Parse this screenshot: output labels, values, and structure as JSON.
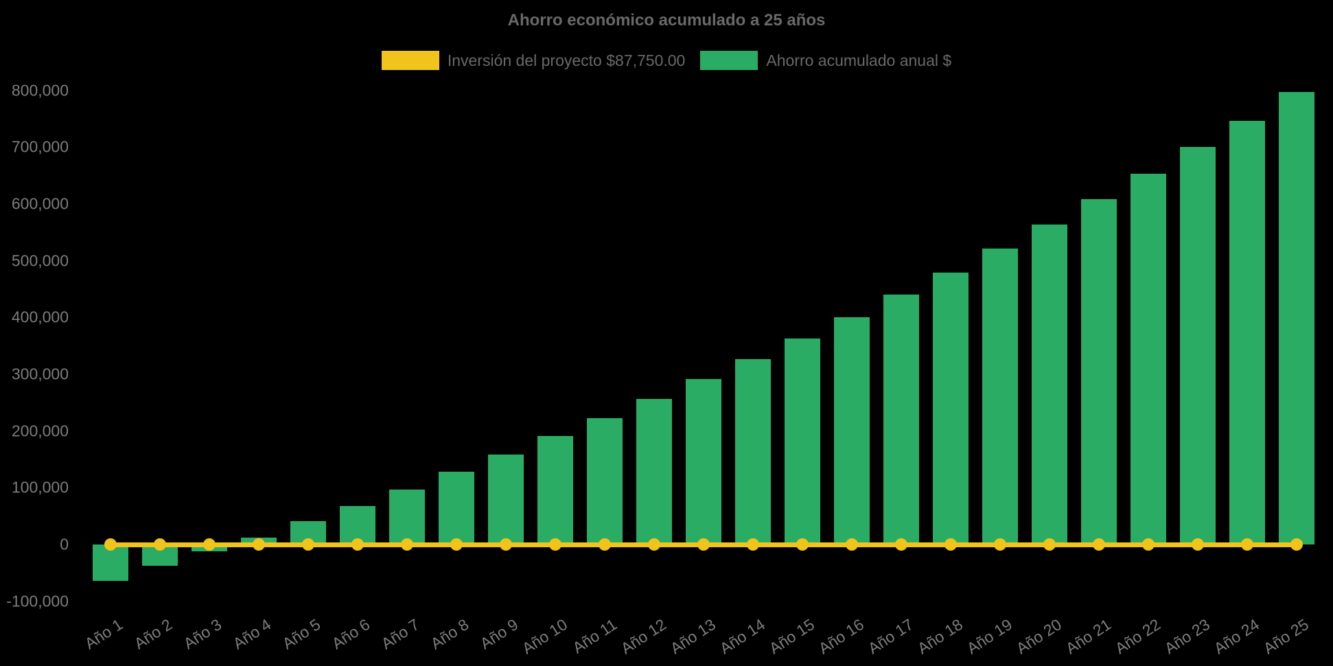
{
  "title": "Ahorro económico acumulado a 25 años",
  "legend": {
    "investment_label": "Inversión del proyecto $87,750.00",
    "savings_label": "Ahorro acumulado anual $"
  },
  "colors": {
    "bar_green": "#2bac64",
    "line_yellow": "#f0c41a",
    "title_gray": "#696969",
    "tick_gray": "#7d7d7d",
    "background": "#000000"
  },
  "chart_data": {
    "type": "bar",
    "title": "Ahorro económico acumulado a 25 años",
    "categories": [
      "Año 1",
      "Año 2",
      "Año 3",
      "Año 4",
      "Año 5",
      "Año 6",
      "Año 7",
      "Año 8",
      "Año 9",
      "Año 10",
      "Año 11",
      "Año 12",
      "Año 13",
      "Año 14",
      "Año 15",
      "Año 16",
      "Año 17",
      "Año 18",
      "Año 19",
      "Año 20",
      "Año 21",
      "Año 22",
      "Año 23",
      "Año 24",
      "Año 25"
    ],
    "series": [
      {
        "name": "Inversión del proyecto $87,750.00",
        "type": "line",
        "color": "#f0c41a",
        "values": [
          0,
          0,
          0,
          0,
          0,
          0,
          0,
          0,
          0,
          0,
          0,
          0,
          0,
          0,
          0,
          0,
          0,
          0,
          0,
          0,
          0,
          0,
          0,
          0,
          0
        ]
      },
      {
        "name": "Ahorro acumulado anual $",
        "type": "bar",
        "color": "#2bac64",
        "values": [
          -64000,
          -38000,
          -12000,
          12000,
          41000,
          68000,
          97000,
          128000,
          159000,
          191000,
          223000,
          256000,
          292000,
          327000,
          363000,
          401000,
          441000,
          479000,
          521000,
          564000,
          608000,
          653000,
          700000,
          747000,
          797000
        ]
      }
    ],
    "xlabel": "",
    "ylabel": "",
    "ylim": [
      -100000,
      800000
    ],
    "y_tick_values": [
      800000,
      700000,
      600000,
      500000,
      400000,
      300000,
      200000,
      100000,
      0,
      -100000
    ],
    "y_tick_labels": [
      "800,000",
      "700,000",
      "600,000",
      "500,000",
      "400,000",
      "300,000",
      "200,000",
      "100,000",
      "0",
      "-100,000"
    ],
    "grid": false,
    "legend_position": "top",
    "x_tick_rotation_deg": -33
  }
}
